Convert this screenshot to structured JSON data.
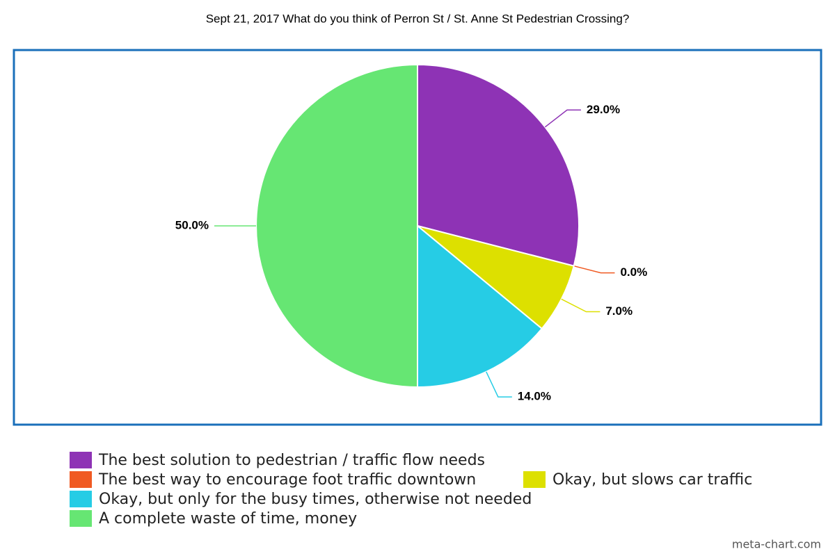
{
  "chart_data": {
    "type": "pie",
    "title": "Sept 21, 2017 What do you think of Perron St / St. Anne St Pedestrian Crossing?",
    "categories": [
      "The best solution to pedestrian / traffic flow needs",
      "The best way to encourage foot traffic downtown",
      "Okay, but slows car traffic",
      "Okay, but only for the busy times, otherwise not needed",
      "A complete waste of time, money"
    ],
    "values": [
      29,
      0,
      7,
      14,
      50
    ],
    "value_labels": [
      "29.0%",
      "0.0%",
      "7.0%",
      "14.0%",
      "50.0%"
    ],
    "colors": [
      "#8e33b5",
      "#f05a22",
      "#dde000",
      "#26cce5",
      "#66e673"
    ],
    "legend": "bottom",
    "credit": "meta-chart.com"
  }
}
